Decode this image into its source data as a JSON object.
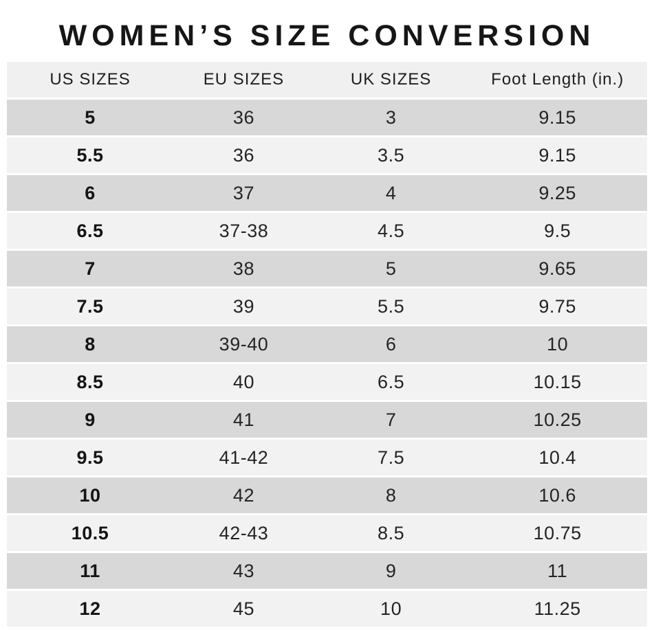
{
  "chart_data": {
    "type": "table",
    "title": "WOMEN’S SIZE CONVERSION",
    "columns": [
      "US SIZES",
      "EU SIZES",
      "UK SIZES",
      "Foot Length (in.)"
    ],
    "rows": [
      [
        "5",
        "36",
        "3",
        "9.15"
      ],
      [
        "5.5",
        "36",
        "3.5",
        "9.15"
      ],
      [
        "6",
        "37",
        "4",
        "9.25"
      ],
      [
        "6.5",
        "37-38",
        "4.5",
        "9.5"
      ],
      [
        "7",
        "38",
        "5",
        "9.65"
      ],
      [
        "7.5",
        "39",
        "5.5",
        "9.75"
      ],
      [
        "8",
        "39-40",
        "6",
        "10"
      ],
      [
        "8.5",
        "40",
        "6.5",
        "10.15"
      ],
      [
        "9",
        "41",
        "7",
        "10.25"
      ],
      [
        "9.5",
        "41-42",
        "7.5",
        "10.4"
      ],
      [
        "10",
        "42",
        "8",
        "10.6"
      ],
      [
        "10.5",
        "42-43",
        "8.5",
        "10.75"
      ],
      [
        "11",
        "43",
        "9",
        "11"
      ],
      [
        "12",
        "45",
        "10",
        "11.25"
      ]
    ],
    "layout": {
      "row_shading": "alternating, first data row dark",
      "grid": "off",
      "column_alignment": "center"
    }
  },
  "colors": {
    "background": "#ffffff",
    "header_band": "#f0f0f0",
    "row_dark": "#d8d8d8",
    "row_light": "#f2f2f2",
    "text": "#1e1e1e"
  }
}
